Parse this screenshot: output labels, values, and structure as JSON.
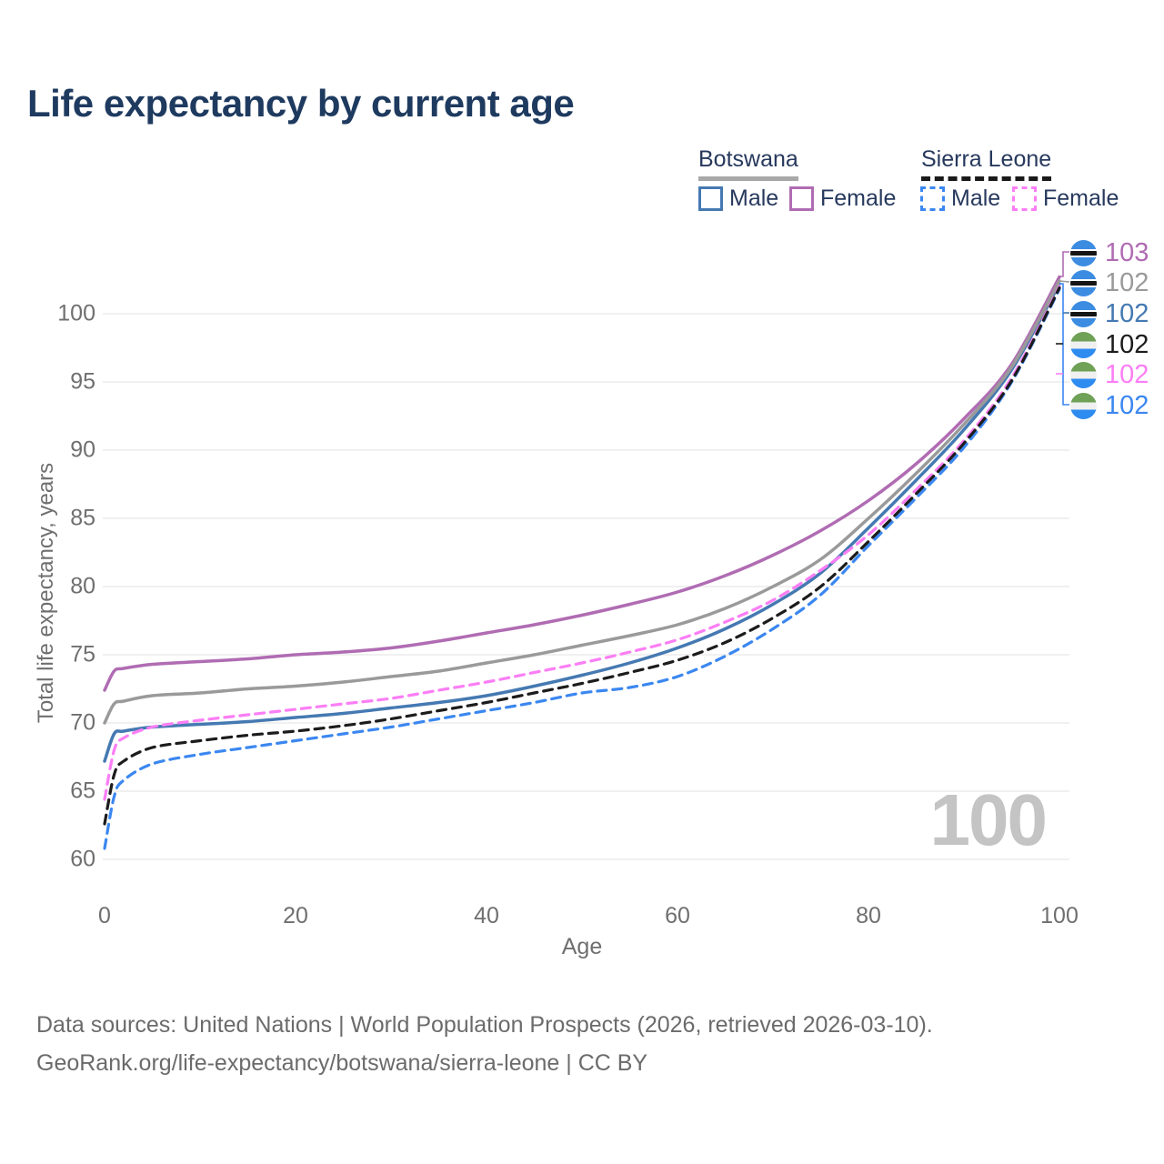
{
  "title": "Life expectancy by current age",
  "legend": {
    "groups": [
      {
        "name": "Botswana",
        "style": "solid",
        "underline_color": "#a8a8a8",
        "items": [
          {
            "label": "Male",
            "color": "#4579b2"
          },
          {
            "label": "Female",
            "color": "#b06cb3"
          }
        ]
      },
      {
        "name": "Sierra Leone",
        "style": "dashed",
        "underline_color": "#1a1a1a",
        "items": [
          {
            "label": "Male",
            "color": "#3b87f0"
          },
          {
            "label": "Female",
            "color": "#fb7ef5"
          }
        ]
      }
    ]
  },
  "chart_data": {
    "type": "line",
    "title": "Life expectancy by current age",
    "xlabel": "Age",
    "ylabel": "Total life expectancy, years",
    "xlim": [
      0,
      100
    ],
    "ylim": [
      60,
      103
    ],
    "xticks": [
      0,
      20,
      40,
      60,
      80,
      100
    ],
    "yticks": [
      60,
      65,
      70,
      75,
      80,
      85,
      90,
      95,
      100
    ],
    "grid": "horizontal",
    "legend_position": "top-right",
    "x": [
      0,
      1,
      2,
      5,
      10,
      15,
      20,
      25,
      30,
      35,
      40,
      45,
      50,
      55,
      60,
      65,
      70,
      75,
      80,
      85,
      90,
      95,
      100
    ],
    "series": [
      {
        "name": "Botswana Male",
        "country": "Botswana",
        "sex": "Male",
        "color": "#4579b2",
        "dash": null,
        "values": [
          67.2,
          69.2,
          69.4,
          69.7,
          69.9,
          70.1,
          70.4,
          70.7,
          71.1,
          71.5,
          72.0,
          72.7,
          73.5,
          74.4,
          75.5,
          76.9,
          78.7,
          81.0,
          84.3,
          87.8,
          91.5,
          95.9,
          102.2
        ],
        "end_label": "102"
      },
      {
        "name": "Botswana Female",
        "country": "Botswana",
        "sex": "Female",
        "color": "#b06cb3",
        "dash": null,
        "values": [
          72.4,
          73.8,
          74.0,
          74.3,
          74.5,
          74.7,
          75.0,
          75.2,
          75.5,
          76.0,
          76.6,
          77.2,
          77.9,
          78.7,
          79.6,
          80.8,
          82.3,
          84.1,
          86.3,
          89.0,
          92.3,
          96.3,
          102.7
        ],
        "end_label": "103"
      },
      {
        "name": "Botswana Combined",
        "country": "Botswana",
        "sex": "Both",
        "color": "#9a9a9a",
        "dash": null,
        "values": [
          70.0,
          71.4,
          71.6,
          72.0,
          72.2,
          72.5,
          72.7,
          73.0,
          73.4,
          73.8,
          74.4,
          75.0,
          75.7,
          76.4,
          77.2,
          78.4,
          80.0,
          82.0,
          85.0,
          88.3,
          91.9,
          96.1,
          102.4
        ],
        "end_label": "102"
      },
      {
        "name": "Sierra Leone Male",
        "country": "Sierra Leone",
        "sex": "Male",
        "color": "#3b87f0",
        "dash": "10 7",
        "values": [
          60.8,
          64.6,
          65.8,
          67.0,
          67.7,
          68.2,
          68.7,
          69.2,
          69.7,
          70.3,
          70.9,
          71.5,
          72.2,
          72.6,
          73.4,
          74.9,
          76.9,
          79.4,
          83.0,
          86.5,
          90.2,
          95.0,
          101.8
        ],
        "end_label": "102"
      },
      {
        "name": "Sierra Leone Female",
        "country": "Sierra Leone",
        "sex": "Female",
        "color": "#fb7ef5",
        "dash": "10 7",
        "values": [
          64.4,
          68.0,
          68.9,
          69.7,
          70.2,
          70.6,
          71.0,
          71.4,
          71.8,
          72.4,
          73.0,
          73.7,
          74.4,
          75.2,
          76.1,
          77.4,
          79.0,
          81.2,
          83.8,
          87.1,
          90.7,
          95.3,
          102.0
        ],
        "end_label": "102"
      },
      {
        "name": "Sierra Leone Combined",
        "country": "Sierra Leone",
        "sex": "Both",
        "color": "#1c1c1c",
        "dash": "10 7",
        "values": [
          62.6,
          66.2,
          67.2,
          68.2,
          68.7,
          69.1,
          69.4,
          69.8,
          70.3,
          70.9,
          71.5,
          72.2,
          72.9,
          73.7,
          74.6,
          75.9,
          77.7,
          80.0,
          83.3,
          86.8,
          90.5,
          95.1,
          101.9
        ],
        "end_label": "102"
      }
    ]
  },
  "annotations": {
    "age_watermark": "100",
    "labels": [
      {
        "value": "103",
        "color": "#b06cb3",
        "flag": "botswana"
      },
      {
        "value": "102",
        "color": "#9a9a9a",
        "flag": "botswana"
      },
      {
        "value": "102",
        "color": "#4579b2",
        "flag": "botswana"
      },
      {
        "value": "102",
        "color": "#1c1c1c",
        "flag": "sierra_leone"
      },
      {
        "value": "102",
        "color": "#fb7ef5",
        "flag": "sierra_leone"
      },
      {
        "value": "102",
        "color": "#3b87f0",
        "flag": "sierra_leone"
      }
    ]
  },
  "flags": {
    "botswana": [
      "#3c8ce2",
      "#ffffff",
      "#151515"
    ],
    "sierra_leone": [
      "#6fa156",
      "#f0f0f0",
      "#2e8bf0"
    ]
  },
  "footer": {
    "line1": "Data sources: United Nations | World Population Prospects (2026, retrieved 2026-03-10).",
    "line2": "GeoRank.org/life-expectancy/botswana/sierra-leone | CC BY"
  }
}
